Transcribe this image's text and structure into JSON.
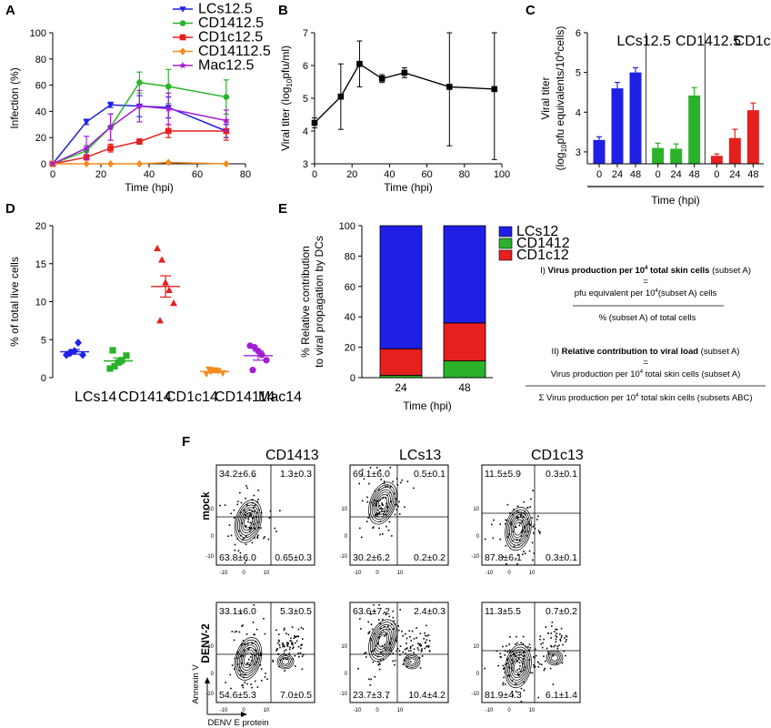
{
  "chart_data": [
    {
      "panel": "A",
      "type": "line",
      "xlabel": "Time (hpi)",
      "ylabel": "Infection (%)",
      "xlim": [
        0,
        80
      ],
      "ylim": [
        0,
        100
      ],
      "xticks": [
        0,
        20,
        40,
        60,
        80
      ],
      "yticks": [
        0,
        20,
        40,
        60,
        80,
        100
      ],
      "legend_position": "top-right",
      "series": [
        {
          "name": "LCs",
          "sup": "",
          "color": "#1f1fe6",
          "marker": "triangle-down",
          "x": [
            0,
            14,
            24,
            36,
            48,
            72
          ],
          "y": [
            0,
            32,
            45,
            44,
            43,
            25
          ],
          "err": [
            0,
            2,
            2,
            8,
            8,
            5
          ]
        },
        {
          "name": "CD14",
          "sup": "+",
          "color": "#2bb22b",
          "marker": "circle",
          "x": [
            0,
            14,
            24,
            36,
            48,
            72
          ],
          "y": [
            0,
            10,
            28,
            62,
            59,
            51
          ],
          "err": [
            0,
            4,
            10,
            8,
            13,
            13
          ]
        },
        {
          "name": "CD1c",
          "sup": "+",
          "color": "#e61f1f",
          "marker": "square",
          "x": [
            0,
            14,
            24,
            36,
            48,
            72
          ],
          "y": [
            0,
            5,
            12,
            17,
            25,
            25
          ],
          "err": [
            0,
            2,
            3,
            2,
            5,
            7
          ]
        },
        {
          "name": "CD141",
          "sup": "+",
          "color": "#f28c1f",
          "marker": "diamond",
          "x": [
            0,
            14,
            24,
            36,
            48,
            72
          ],
          "y": [
            0,
            0,
            0,
            0,
            1,
            0
          ],
          "err": [
            0,
            0,
            0,
            0,
            0,
            0
          ]
        },
        {
          "name": "Mac",
          "sup": "",
          "color": "#a21fd6",
          "marker": "star",
          "x": [
            0,
            14,
            24,
            36,
            48,
            72
          ],
          "y": [
            0,
            12,
            28,
            44,
            42,
            33
          ],
          "err": [
            0,
            9,
            10,
            12,
            12,
            8
          ]
        }
      ]
    },
    {
      "panel": "B",
      "type": "line",
      "xlabel": "Time (hpi)",
      "ylabel_main": "Viral titer (log",
      "ylabel_sub": "10",
      "ylabel_tail": "pfu/ml)",
      "xlim": [
        0,
        100
      ],
      "ylim": [
        3,
        7
      ],
      "xticks": [
        0,
        20,
        40,
        60,
        80,
        100
      ],
      "yticks": [
        3,
        4,
        5,
        6,
        7
      ],
      "series": [
        {
          "name": "",
          "color": "#000000",
          "marker": "square",
          "x": [
            0,
            14,
            24,
            36,
            48,
            72,
            96
          ],
          "y": [
            4.25,
            5.05,
            6.05,
            5.6,
            5.78,
            5.35,
            5.28
          ],
          "err": [
            0.15,
            1.0,
            0.7,
            0.12,
            0.15,
            1.8,
            2.15
          ]
        }
      ]
    },
    {
      "panel": "C",
      "type": "bar",
      "xlabel": "Time (hpi)",
      "ylabel_line1": "Viral titer",
      "ylabel_line2": "(log10pfu equivalents/10^4cells)",
      "ylim": [
        2.7,
        6
      ],
      "yticks": [
        3,
        4,
        5,
        6
      ],
      "categories": [
        "0",
        "24",
        "48"
      ],
      "groups": [
        {
          "name": "LCs",
          "sup": "",
          "color": "#1f1fe6",
          "values": [
            3.3,
            4.6,
            5.0
          ],
          "err": [
            0.08,
            0.15,
            0.12
          ]
        },
        {
          "name": "CD14",
          "sup": "+",
          "color": "#2bb22b",
          "values": [
            3.1,
            3.08,
            4.42
          ],
          "err": [
            0.12,
            0.12,
            0.2
          ]
        },
        {
          "name": "CD1c",
          "sup": "+",
          "color": "#e61f1f",
          "values": [
            2.9,
            3.35,
            4.05
          ],
          "err": [
            0.05,
            0.22,
            0.18
          ]
        }
      ]
    },
    {
      "panel": "D",
      "type": "scatter",
      "ylabel": "% of total live cells",
      "ylim": [
        0,
        20
      ],
      "yticks": [
        0,
        5,
        10,
        15,
        20
      ],
      "groups": [
        {
          "name": "LCs",
          "sup": "",
          "color": "#1f1fe6",
          "marker": "diamond",
          "mean": 3.4,
          "sem": 0.3,
          "values": [
            3.0,
            3.3,
            3.5,
            4.6,
            3.0,
            3.2
          ]
        },
        {
          "name": "CD14",
          "sup": "+",
          "color": "#2bb22b",
          "marker": "square",
          "mean": 2.2,
          "sem": 0.4,
          "values": [
            1.2,
            1.5,
            2.0,
            2.3,
            2.9,
            3.6
          ]
        },
        {
          "name": "CD1c",
          "sup": "+",
          "color": "#e61f1f",
          "marker": "triangle",
          "mean": 12.0,
          "sem": 1.4,
          "values": [
            17.0,
            15.5,
            12.5,
            11.5,
            9.8,
            7.5
          ]
        },
        {
          "name": "CD141",
          "sup": "+",
          "color": "#f28c1f",
          "marker": "triangle-down",
          "mean": 0.8,
          "sem": 0.15,
          "values": [
            0.5,
            0.8,
            1.0,
            0.9,
            0.6,
            1.1
          ]
        },
        {
          "name": "Mac",
          "sup": "",
          "color": "#a21fd6",
          "marker": "circle",
          "mean": 2.9,
          "sem": 0.6,
          "values": [
            4.2,
            4.0,
            3.5,
            3.0,
            2.3,
            1.0
          ]
        }
      ]
    },
    {
      "panel": "E",
      "type": "bar",
      "stacked": true,
      "xlabel": "Time (hpi)",
      "ylabel_line1": "% Relative contribution",
      "ylabel_line2": "to viral propagation by DCs",
      "ylim": [
        0,
        100
      ],
      "yticks": [
        0,
        20,
        40,
        60,
        80,
        100
      ],
      "categories": [
        "24",
        "48"
      ],
      "series": [
        {
          "name": "CD14",
          "sup": "+",
          "color": "#2bb22b",
          "values": [
            1.5,
            11
          ]
        },
        {
          "name": "CD1c",
          "sup": "+",
          "color": "#e61f1f",
          "values": [
            17.5,
            25
          ]
        },
        {
          "name": "LCs",
          "sup": "",
          "color": "#1f1fe6",
          "values": [
            81,
            64
          ]
        }
      ],
      "legend_order": [
        2,
        0,
        1
      ],
      "legend_position": "top-right"
    }
  ],
  "panel_labels": [
    "A",
    "B",
    "C",
    "D",
    "E",
    "F"
  ],
  "formulas": {
    "f1_lead": "I) ",
    "f1_bold": "Virus production per 10",
    "f1_sup": "4",
    "f1_bold2": " total skin cells",
    "f1_tail": "  (subset A)",
    "f1_eq": "=",
    "f1_num_a": "pfu equivalent per 10",
    "f1_num_sup": "4",
    "f1_num_b": "(subset A) cells",
    "f1_den": "% (subset A) of total cells",
    "f2_lead": "II) ",
    "f2_bold": "Relative contribution to viral load",
    "f2_tail": " (subset A)",
    "f2_eq": "=",
    "f2_num_a": "Virus production per 10",
    "f2_num_sup": "4",
    "f2_num_b": " total skin cells (subset A)",
    "f2_den_a": "Σ Virus production per 10",
    "f2_den_sup": "4",
    "f2_den_b": " total skin cells (subsets ABC)"
  },
  "flow": {
    "columns": [
      {
        "name": "CD14",
        "sup": "+",
        "color": "#2bb22b"
      },
      {
        "name": "LCs",
        "sup": "",
        "color": "#1f1fe6"
      },
      {
        "name": "CD1c",
        "sup": "+",
        "color": "#e61f1f"
      }
    ],
    "rows": [
      "mock",
      "DENV-2"
    ],
    "quadrants": [
      [
        [
          "34.2±6.6",
          "1.3±0.3",
          "63.8±6.0",
          "0.65±0.3"
        ],
        [
          "69.1±6.0",
          "0.5±0.1",
          "30.2±6.2",
          "0.2±0.2"
        ],
        [
          "11.5±5.9",
          "0.3±0.1",
          "87.8±6.1",
          "0.3±0.1"
        ]
      ],
      [
        [
          "33.1±6.0",
          "5.3±0.5",
          "54.6±5.3",
          "7.0±0.5"
        ],
        [
          "63.6±7.2",
          "2.4±0.3",
          "23.7±3.7",
          "10.4±4.2"
        ],
        [
          "11.3±5.5",
          "0.7±0.2",
          "81.9±4.3",
          "6.1±1.4"
        ]
      ]
    ],
    "y_axis_label": "Annexin V",
    "x_axis_label": "DENV E protein",
    "tick_labels": [
      "-10",
      "0",
      "10"
    ]
  }
}
